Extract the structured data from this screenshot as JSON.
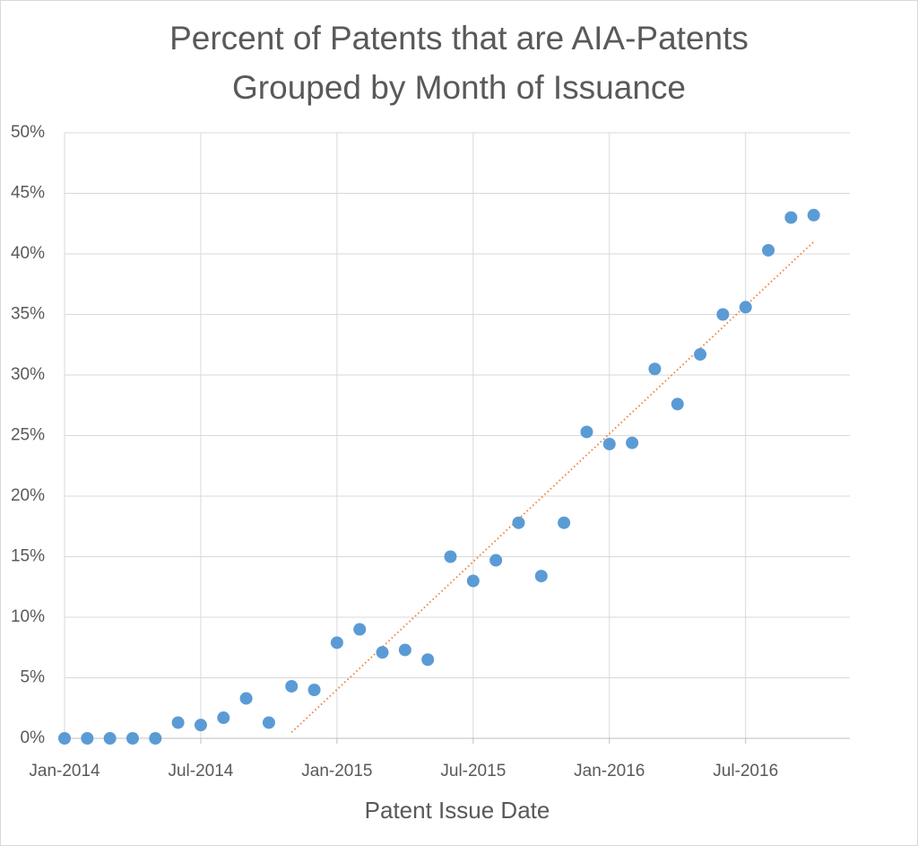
{
  "chart_data": {
    "type": "scatter",
    "title": [
      "Percent of Patents that are AIA-Patents",
      "Grouped by Month of Issuance"
    ],
    "x_label": "Patent Issue Date",
    "x": [
      "Jan-2014",
      "Feb-2014",
      "Mar-2014",
      "Apr-2014",
      "May-2014",
      "Jun-2014",
      "Jul-2014",
      "Aug-2014",
      "Sep-2014",
      "Oct-2014",
      "Nov-2014",
      "Dec-2014",
      "Jan-2015",
      "Feb-2015",
      "Mar-2015",
      "Apr-2015",
      "May-2015",
      "Jun-2015",
      "Jul-2015",
      "Aug-2015",
      "Sep-2015",
      "Oct-2015",
      "Nov-2015",
      "Dec-2015",
      "Jan-2016",
      "Feb-2016",
      "Mar-2016",
      "Apr-2016",
      "May-2016",
      "Jun-2016",
      "Jul-2016",
      "Aug-2016",
      "Sep-2016",
      "Oct-2016"
    ],
    "values": [
      0,
      0,
      0,
      0,
      0,
      1.3,
      1.1,
      1.7,
      3.3,
      1.3,
      4.3,
      4.0,
      7.9,
      9.0,
      7.1,
      7.3,
      6.5,
      15.0,
      13.0,
      14.7,
      17.8,
      13.4,
      17.8,
      25.3,
      24.3,
      24.4,
      30.5,
      27.6,
      31.7,
      35.0,
      35.6,
      40.3,
      43.0,
      43.2
    ],
    "color": "#5b9bd5",
    "trendline": {
      "x": [
        "Nov-2014",
        "Oct-2016"
      ],
      "values": [
        0.5,
        41.0
      ],
      "color": "#ed7d31"
    },
    "xlim": [
      "Jan-2014",
      "Nov-2016"
    ],
    "xticks": [
      "Jan-2014",
      "Jul-2014",
      "Jan-2015",
      "Jul-2015",
      "Jan-2016",
      "Jul-2016"
    ],
    "ylim": [
      0,
      50
    ],
    "yticks": [
      {
        "value": 0,
        "label": "0%"
      },
      {
        "value": 5,
        "label": "5%"
      },
      {
        "value": 10,
        "label": "10%"
      },
      {
        "value": 15,
        "label": "15%"
      },
      {
        "value": 20,
        "label": "20%"
      },
      {
        "value": 25,
        "label": "25%"
      },
      {
        "value": 30,
        "label": "30%"
      },
      {
        "value": 35,
        "label": "35%"
      },
      {
        "value": 40,
        "label": "40%"
      },
      {
        "value": 45,
        "label": "45%"
      },
      {
        "value": 50,
        "label": "50%"
      }
    ],
    "grid": true
  }
}
